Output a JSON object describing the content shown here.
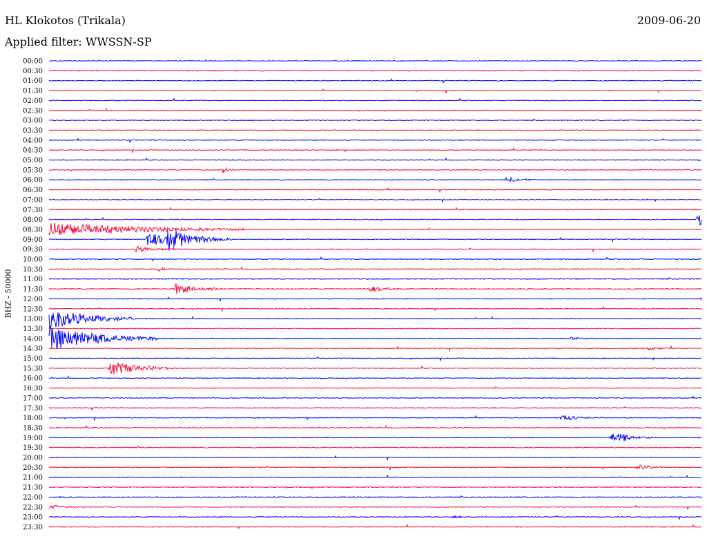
{
  "header": {
    "station": "HL Klokotos (Trikala)",
    "date": "2009-06-20",
    "filter": "Applied filter: WWSSN-SP"
  },
  "chart_data": {
    "type": "line",
    "title": "HL Klokotos (Trikala)",
    "subtitle": "Applied filter: WWSSN-SP",
    "date": "2009-06-20",
    "ylabel": "BHZ - 50000",
    "xlabel": "",
    "colors": {
      "even": "#0000ff",
      "odd": "#ff0033"
    },
    "rows": [
      "00:00",
      "00:30",
      "01:00",
      "01:30",
      "02:00",
      "02:30",
      "03:00",
      "03:30",
      "04:00",
      "04:30",
      "05:00",
      "05:30",
      "06:00",
      "06:30",
      "07:00",
      "07:30",
      "08:00",
      "08:30",
      "09:00",
      "09:30",
      "10:00",
      "10:30",
      "11:00",
      "11:30",
      "12:00",
      "12:30",
      "13:00",
      "13:30",
      "14:00",
      "14:30",
      "15:00",
      "15:30",
      "16:00",
      "16:30",
      "17:00",
      "17:30",
      "18:00",
      "18:30",
      "19:00",
      "19:30",
      "20:00",
      "20:30",
      "21:00",
      "21:30",
      "22:00",
      "22:30",
      "23:00",
      "23:30"
    ],
    "events": [
      {
        "row": "05:30",
        "minute": 8.0,
        "amp": 0.6,
        "dur": 0.6
      },
      {
        "row": "06:00",
        "minute": 21.0,
        "amp": 0.45,
        "dur": 2.0
      },
      {
        "row": "08:00",
        "minute": 29.8,
        "amp": 1.5,
        "dur": 1.5
      },
      {
        "row": "08:30",
        "minute": 0.0,
        "amp": 1.5,
        "dur": 9.0
      },
      {
        "row": "09:00",
        "minute": 4.5,
        "amp": 1.4,
        "dur": 3.0
      },
      {
        "row": "09:00",
        "minute": 5.4,
        "amp": 2.0,
        "dur": 3.0
      },
      {
        "row": "09:30",
        "minute": 4.0,
        "amp": 0.6,
        "dur": 2.0
      },
      {
        "row": "10:30",
        "minute": 5.0,
        "amp": 0.4,
        "dur": 1.0
      },
      {
        "row": "11:30",
        "minute": 5.8,
        "amp": 1.2,
        "dur": 2.0
      },
      {
        "row": "11:30",
        "minute": 14.7,
        "amp": 0.6,
        "dur": 2.0
      },
      {
        "row": "12:00",
        "minute": 30.0,
        "amp": 2.0,
        "dur": 1.0
      },
      {
        "row": "12:30",
        "minute": 30.0,
        "amp": 2.5,
        "dur": 1.0
      },
      {
        "row": "13:00",
        "minute": 0.0,
        "amp": 2.2,
        "dur": 4.0
      },
      {
        "row": "14:00",
        "minute": 0.0,
        "amp": 2.5,
        "dur": 5.0
      },
      {
        "row": "14:00",
        "minute": 24.0,
        "amp": 0.4,
        "dur": 1.0
      },
      {
        "row": "14:30",
        "minute": 27.5,
        "amp": 0.5,
        "dur": 1.0
      },
      {
        "row": "15:30",
        "minute": 2.8,
        "amp": 1.5,
        "dur": 3.0
      },
      {
        "row": "18:00",
        "minute": 23.5,
        "amp": 0.6,
        "dur": 2.0
      },
      {
        "row": "19:00",
        "minute": 25.8,
        "amp": 1.3,
        "dur": 2.0
      },
      {
        "row": "20:30",
        "minute": 27.0,
        "amp": 0.7,
        "dur": 1.5
      },
      {
        "row": "22:00",
        "minute": 30.0,
        "amp": 0.5,
        "dur": 1.0
      },
      {
        "row": "22:30",
        "minute": 0.0,
        "amp": 0.4,
        "dur": 2.0
      },
      {
        "row": "23:00",
        "minute": 18.5,
        "amp": 0.3,
        "dur": 1.0
      }
    ]
  }
}
